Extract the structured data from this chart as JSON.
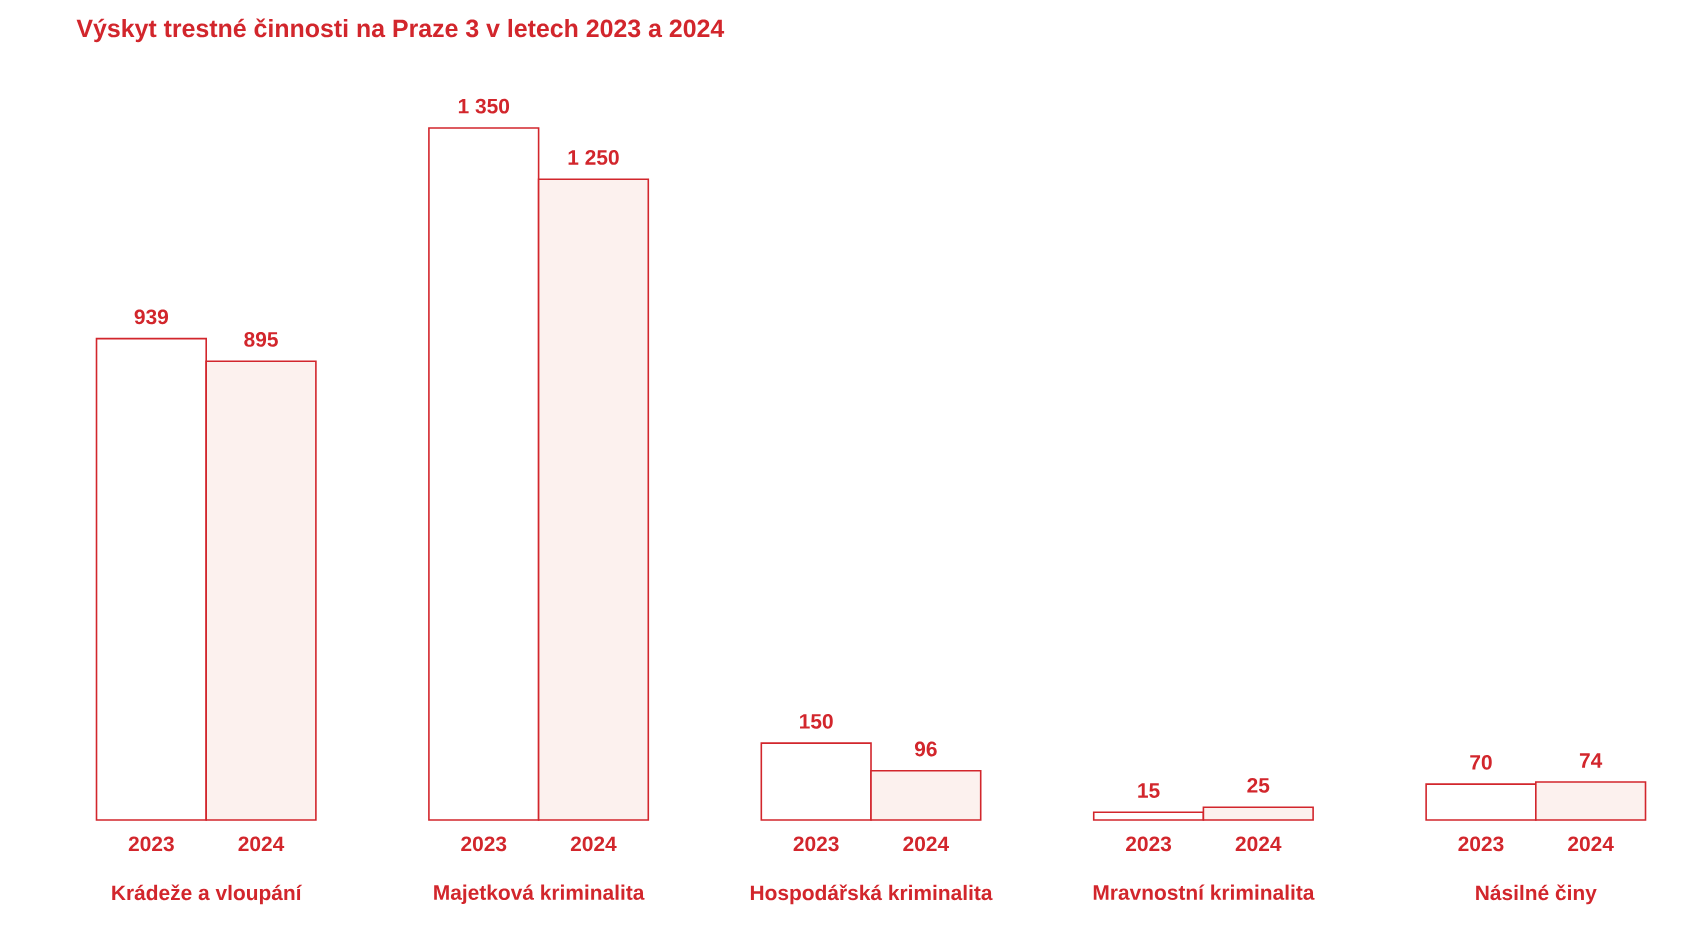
{
  "chart_data": {
    "type": "bar",
    "title": "Výskyt trestné činnosti na Praze 3 v letech 2023 a 2024",
    "categories": [
      "Krádeže a vloupání",
      "Majetková kriminalita",
      "Hospodářská kriminalita",
      "Mravnostní kriminalita",
      "Násilné činy"
    ],
    "series": [
      {
        "name": "2023",
        "color": "#ffffff",
        "values": [
          939,
          1350,
          150,
          15,
          70
        ],
        "value_labels": [
          "939",
          "1 350",
          "150",
          "15",
          "70"
        ]
      },
      {
        "name": "2024",
        "color": "#fcf1ee",
        "values": [
          895,
          1250,
          96,
          25,
          74
        ],
        "value_labels": [
          "895",
          "1 250",
          "96",
          "25",
          "74"
        ]
      }
    ]
  }
}
